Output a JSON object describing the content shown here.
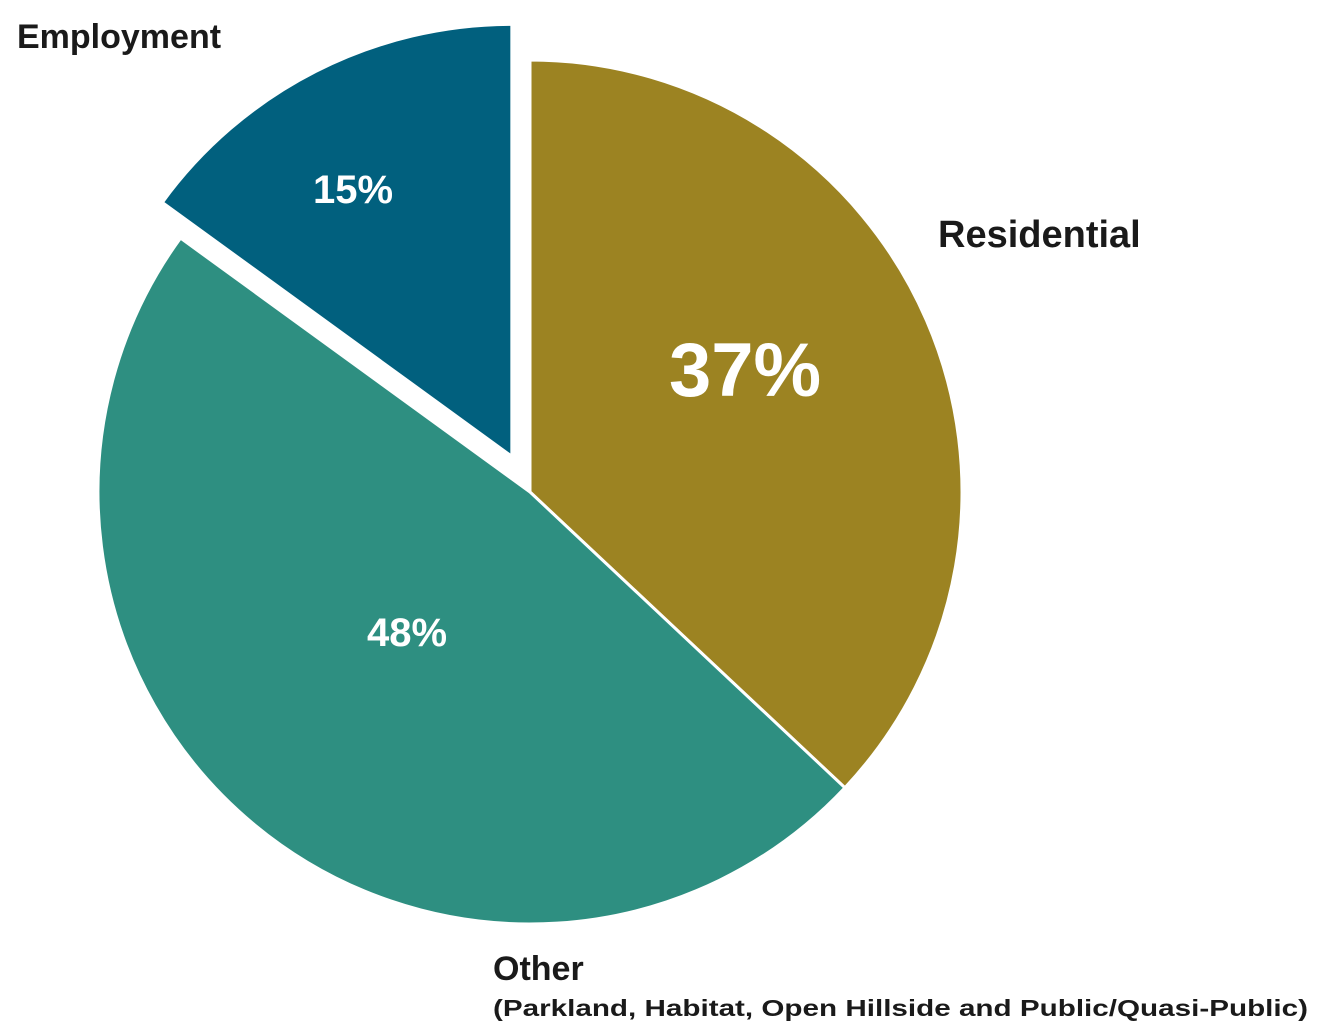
{
  "chart_data": {
    "type": "pie",
    "start_angle_deg": 0,
    "direction": "clockwise",
    "slices": [
      {
        "name": "Residential",
        "value": 37,
        "label": "37%",
        "sublabel": "",
        "color": "#9c8322",
        "exploded": false
      },
      {
        "name": "Other",
        "value": 48,
        "label": "48%",
        "sublabel": "(Parkland, Habitat, Open Hillside and Public/Quasi-Public)",
        "color": "#2e8f81",
        "exploded": false
      },
      {
        "name": "Employment",
        "value": 15,
        "label": "15%",
        "sublabel": "",
        "color": "#01607e",
        "exploded": true
      }
    ],
    "legend": "none"
  }
}
